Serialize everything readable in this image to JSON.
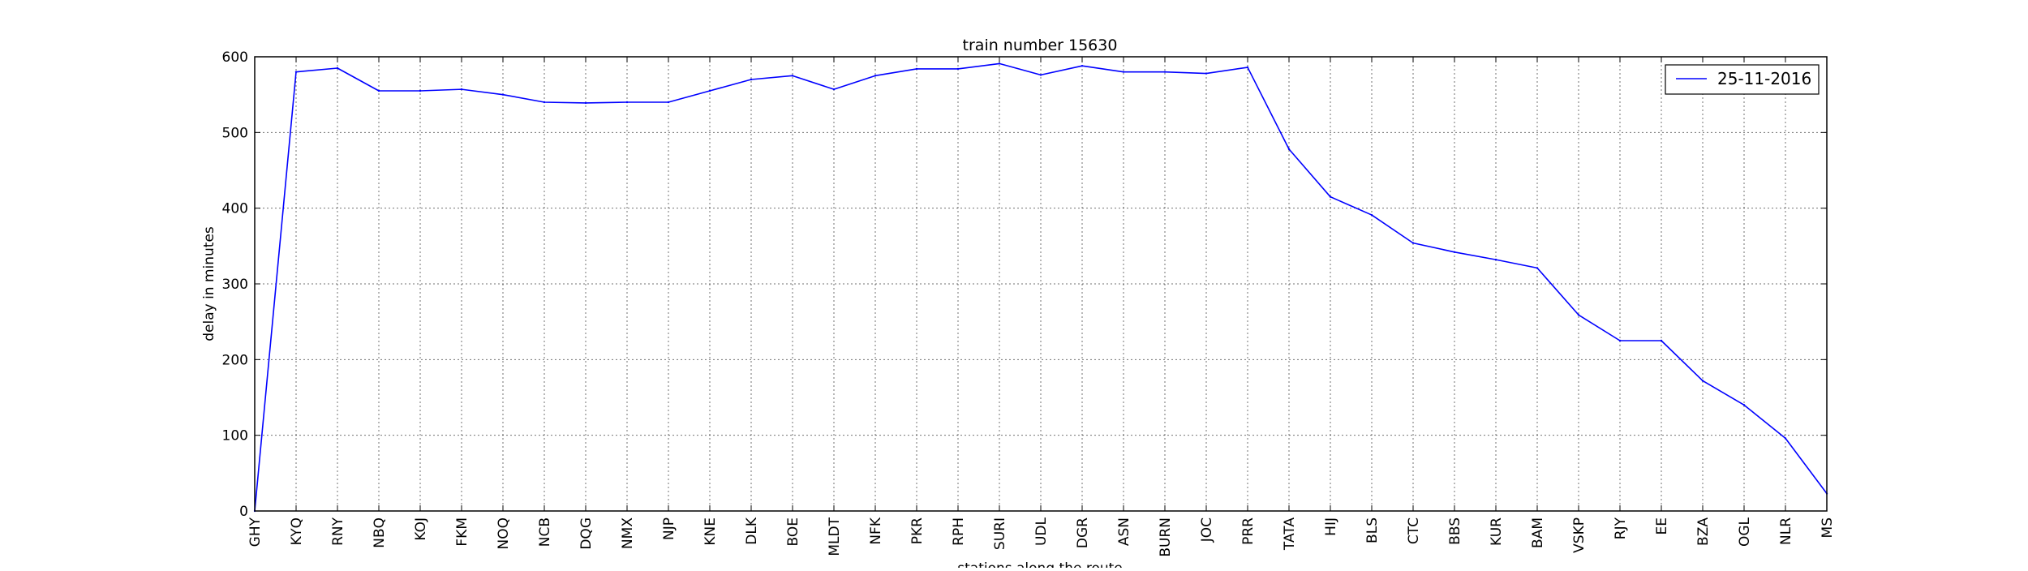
{
  "chart_data": {
    "type": "line",
    "title": "train number 15630",
    "xlabel": "stations along the route",
    "ylabel": "delay in minutes",
    "categories": [
      "GHY",
      "KYQ",
      "RNY",
      "NBQ",
      "KOJ",
      "FKM",
      "NOQ",
      "NCB",
      "DQG",
      "NMX",
      "NJP",
      "KNE",
      "DLK",
      "BOE",
      "MLDT",
      "NFK",
      "PKR",
      "RPH",
      "SURI",
      "UDL",
      "DGR",
      "ASN",
      "BURN",
      "JOC",
      "PRR",
      "TATA",
      "HIJ",
      "BLS",
      "CTC",
      "BBS",
      "KUR",
      "BAM",
      "VSKP",
      "RJY",
      "EE",
      "BZA",
      "OGL",
      "NLR",
      "MS"
    ],
    "series": [
      {
        "name": "25-11-2016",
        "values": [
          0,
          580,
          585,
          555,
          555,
          557,
          550,
          540,
          539,
          540,
          540,
          555,
          570,
          575,
          557,
          575,
          584,
          584,
          591,
          576,
          588,
          580,
          580,
          578,
          586,
          478,
          415,
          391,
          354,
          342,
          332,
          321,
          259,
          225,
          225,
          172,
          140,
          96,
          23
        ],
        "color": "#0000ff"
      }
    ],
    "ylim": [
      0,
      600
    ],
    "yticks": [
      0,
      100,
      200,
      300,
      400,
      500,
      600
    ],
    "grid": true,
    "legend_position": "top-right"
  }
}
